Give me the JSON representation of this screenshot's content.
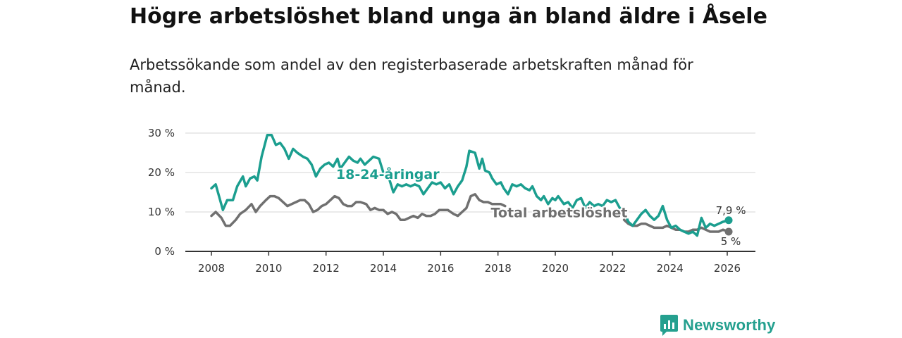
{
  "chart_data": {
    "type": "line",
    "title": "Högre arbetslöshet bland unga än bland äldre i Åsele",
    "subtitle": "Arbetssökande som andel av den registerbaserade arbetskraften månad för månad.",
    "xlabel": "",
    "ylabel": "",
    "xlim": [
      2007.4,
      2026.8
    ],
    "ylim": [
      0,
      30
    ],
    "yticks": [
      0,
      10,
      20,
      30
    ],
    "ytick_labels": [
      "0 %",
      "10 %",
      "20 %",
      "30 %"
    ],
    "xticks": [
      2008,
      2010,
      2012,
      2014,
      2016,
      2018,
      2020,
      2022,
      2024,
      2026
    ],
    "xtick_labels": [
      "2008",
      "2010",
      "2012",
      "2014",
      "2016",
      "2018",
      "2020",
      "2022",
      "2024",
      "2026"
    ],
    "grid": true,
    "series": [
      {
        "name": "18-24-åringar",
        "label": "18-24-åringar",
        "color": "#1b9e8f",
        "end_label": "7,9 %",
        "points": [
          [
            2008.0,
            16
          ],
          [
            2008.15,
            17
          ],
          [
            2008.4,
            10.5
          ],
          [
            2008.55,
            13
          ],
          [
            2008.75,
            13
          ],
          [
            2008.9,
            16.5
          ],
          [
            2009.1,
            19
          ],
          [
            2009.2,
            16.5
          ],
          [
            2009.35,
            18.5
          ],
          [
            2009.5,
            19
          ],
          [
            2009.6,
            18
          ],
          [
            2009.75,
            24
          ],
          [
            2009.95,
            29.5
          ],
          [
            2010.1,
            29.5
          ],
          [
            2010.25,
            27
          ],
          [
            2010.4,
            27.5
          ],
          [
            2010.55,
            26
          ],
          [
            2010.7,
            23.5
          ],
          [
            2010.85,
            26
          ],
          [
            2011.0,
            25
          ],
          [
            2011.2,
            24
          ],
          [
            2011.35,
            23.5
          ],
          [
            2011.5,
            22
          ],
          [
            2011.65,
            19
          ],
          [
            2011.8,
            21
          ],
          [
            2011.95,
            22
          ],
          [
            2012.1,
            22.5
          ],
          [
            2012.25,
            21.5
          ],
          [
            2012.4,
            23.5
          ],
          [
            2012.5,
            21
          ],
          [
            2012.65,
            22.5
          ],
          [
            2012.8,
            24
          ],
          [
            2012.95,
            23
          ],
          [
            2013.1,
            22.5
          ],
          [
            2013.2,
            23.5
          ],
          [
            2013.35,
            22
          ],
          [
            2013.5,
            23
          ],
          [
            2013.65,
            24
          ],
          [
            2013.85,
            23.5
          ],
          [
            2014.0,
            20
          ],
          [
            2014.2,
            18.5
          ],
          [
            2014.35,
            15
          ],
          [
            2014.5,
            17
          ],
          [
            2014.65,
            16.5
          ],
          [
            2014.8,
            17
          ],
          [
            2014.95,
            16.5
          ],
          [
            2015.1,
            17
          ],
          [
            2015.25,
            16.5
          ],
          [
            2015.4,
            14.5
          ],
          [
            2015.55,
            16
          ],
          [
            2015.7,
            17.5
          ],
          [
            2015.85,
            17
          ],
          [
            2016.0,
            17.5
          ],
          [
            2016.15,
            16
          ],
          [
            2016.3,
            17
          ],
          [
            2016.45,
            14.5
          ],
          [
            2016.6,
            16.5
          ],
          [
            2016.75,
            18
          ],
          [
            2016.9,
            21.5
          ],
          [
            2017.0,
            25.5
          ],
          [
            2017.2,
            25
          ],
          [
            2017.35,
            21
          ],
          [
            2017.45,
            23.5
          ],
          [
            2017.55,
            20.5
          ],
          [
            2017.7,
            20
          ],
          [
            2017.8,
            18.5
          ],
          [
            2017.95,
            17
          ],
          [
            2018.1,
            17.5
          ],
          [
            2018.2,
            16
          ],
          [
            2018.35,
            14.5
          ],
          [
            2018.5,
            17
          ],
          [
            2018.65,
            16.5
          ],
          [
            2018.8,
            17
          ],
          [
            2018.95,
            16
          ],
          [
            2019.1,
            15.5
          ],
          [
            2019.2,
            16.5
          ],
          [
            2019.35,
            14
          ],
          [
            2019.5,
            13
          ],
          [
            2019.6,
            14
          ],
          [
            2019.75,
            12
          ],
          [
            2019.9,
            13.5
          ],
          [
            2020.0,
            13
          ],
          [
            2020.1,
            14
          ],
          [
            2020.3,
            12
          ],
          [
            2020.45,
            12.5
          ],
          [
            2020.6,
            11
          ],
          [
            2020.75,
            13
          ],
          [
            2020.9,
            13.5
          ],
          [
            2021.05,
            11
          ],
          [
            2021.2,
            12.5
          ],
          [
            2021.35,
            11.5
          ],
          [
            2021.5,
            12
          ],
          [
            2021.65,
            11.5
          ],
          [
            2021.8,
            13
          ],
          [
            2021.95,
            12.5
          ],
          [
            2022.1,
            13
          ],
          [
            2022.25,
            11
          ],
          [
            2022.4,
            10
          ],
          [
            2022.55,
            7.5
          ],
          [
            2022.7,
            6.5
          ],
          [
            2022.85,
            8
          ],
          [
            2023.0,
            9.5
          ],
          [
            2023.15,
            10.5
          ],
          [
            2023.3,
            9
          ],
          [
            2023.45,
            8
          ],
          [
            2023.6,
            9
          ],
          [
            2023.75,
            11.5
          ],
          [
            2023.9,
            8
          ],
          [
            2024.05,
            6
          ],
          [
            2024.2,
            6.5
          ],
          [
            2024.35,
            5.5
          ],
          [
            2024.5,
            5
          ],
          [
            2024.65,
            4.5
          ],
          [
            2024.8,
            5
          ],
          [
            2024.95,
            4
          ],
          [
            2025.1,
            8.5
          ],
          [
            2025.25,
            6
          ],
          [
            2025.4,
            7
          ],
          [
            2025.55,
            6.5
          ],
          [
            2025.7,
            7
          ],
          [
            2025.85,
            7.5
          ],
          [
            2026.05,
            7.9
          ]
        ]
      },
      {
        "name": "Total arbetslöshet",
        "label": "Total arbetslöshet",
        "color": "#707070",
        "end_label": "5 %",
        "points": [
          [
            2008.0,
            9
          ],
          [
            2008.15,
            10
          ],
          [
            2008.35,
            8.5
          ],
          [
            2008.5,
            6.5
          ],
          [
            2008.65,
            6.5
          ],
          [
            2008.85,
            8
          ],
          [
            2009.0,
            9.5
          ],
          [
            2009.2,
            10.5
          ],
          [
            2009.4,
            12
          ],
          [
            2009.55,
            10
          ],
          [
            2009.7,
            11.5
          ],
          [
            2009.9,
            13
          ],
          [
            2010.05,
            14
          ],
          [
            2010.2,
            14
          ],
          [
            2010.35,
            13.5
          ],
          [
            2010.5,
            12.5
          ],
          [
            2010.65,
            11.5
          ],
          [
            2010.8,
            12
          ],
          [
            2010.95,
            12.5
          ],
          [
            2011.1,
            13
          ],
          [
            2011.25,
            13
          ],
          [
            2011.4,
            12
          ],
          [
            2011.55,
            10
          ],
          [
            2011.7,
            10.5
          ],
          [
            2011.85,
            11.5
          ],
          [
            2012.0,
            12
          ],
          [
            2012.15,
            13
          ],
          [
            2012.3,
            14
          ],
          [
            2012.45,
            13.5
          ],
          [
            2012.6,
            12
          ],
          [
            2012.75,
            11.5
          ],
          [
            2012.9,
            11.5
          ],
          [
            2013.05,
            12.5
          ],
          [
            2013.2,
            12.5
          ],
          [
            2013.4,
            12
          ],
          [
            2013.55,
            10.5
          ],
          [
            2013.7,
            11
          ],
          [
            2013.85,
            10.5
          ],
          [
            2014.0,
            10.5
          ],
          [
            2014.15,
            9.5
          ],
          [
            2014.3,
            10
          ],
          [
            2014.45,
            9.5
          ],
          [
            2014.6,
            8
          ],
          [
            2014.75,
            8
          ],
          [
            2014.9,
            8.5
          ],
          [
            2015.05,
            9
          ],
          [
            2015.2,
            8.5
          ],
          [
            2015.35,
            9.5
          ],
          [
            2015.5,
            9
          ],
          [
            2015.65,
            9
          ],
          [
            2015.8,
            9.5
          ],
          [
            2015.95,
            10.5
          ],
          [
            2016.1,
            10.5
          ],
          [
            2016.25,
            10.5
          ],
          [
            2016.45,
            9.5
          ],
          [
            2016.6,
            9
          ],
          [
            2016.75,
            10
          ],
          [
            2016.9,
            11
          ],
          [
            2017.05,
            14
          ],
          [
            2017.2,
            14.5
          ],
          [
            2017.35,
            13
          ],
          [
            2017.5,
            12.5
          ],
          [
            2017.65,
            12.5
          ],
          [
            2017.8,
            12
          ],
          [
            2017.95,
            12
          ],
          [
            2018.1,
            12
          ],
          [
            2018.25,
            11.5
          ]
        ]
      },
      {
        "name": "Total arbetslöshet (2022–2026)",
        "label": "",
        "color": "#707070",
        "end_label": "",
        "points": [
          [
            2022.4,
            8
          ],
          [
            2022.55,
            7
          ],
          [
            2022.7,
            6.5
          ],
          [
            2022.85,
            6.5
          ],
          [
            2023.0,
            7
          ],
          [
            2023.15,
            7
          ],
          [
            2023.3,
            6.5
          ],
          [
            2023.45,
            6
          ],
          [
            2023.6,
            6
          ],
          [
            2023.75,
            6
          ],
          [
            2023.9,
            6.5
          ],
          [
            2024.05,
            6
          ],
          [
            2024.2,
            5.5
          ],
          [
            2024.35,
            5.5
          ],
          [
            2024.5,
            5
          ],
          [
            2024.65,
            5
          ],
          [
            2024.8,
            5.5
          ],
          [
            2024.95,
            5.5
          ],
          [
            2025.1,
            6
          ],
          [
            2025.25,
            5.5
          ],
          [
            2025.4,
            5
          ],
          [
            2025.55,
            5
          ],
          [
            2025.7,
            5
          ],
          [
            2025.85,
            5.5
          ],
          [
            2026.05,
            5
          ]
        ]
      }
    ]
  },
  "brand": {
    "name": "Newsworthy",
    "color": "#25a08f"
  }
}
